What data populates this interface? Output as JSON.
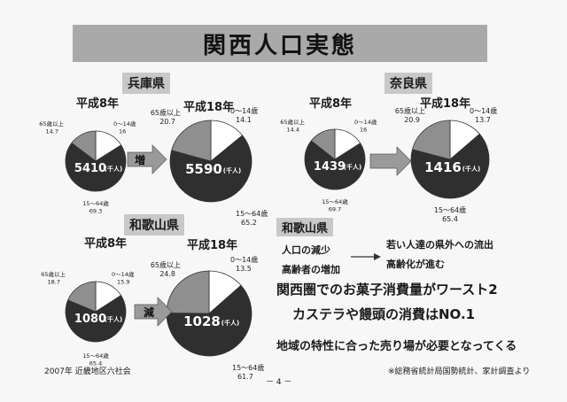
{
  "slide": {
    "title": "関西人口実態",
    "page_number": "－ 4 －",
    "footer_left": "2007年 近畿地区六社会",
    "footer_right": "※総務省統計局国勢統計、家計調査より",
    "colors": {
      "under15": "#ffffff",
      "age15to64": "#2f2f2f",
      "over65": "#8f8f8f",
      "title_bg": "#a9a9a9"
    }
  },
  "labels": {
    "under15": "0～14歳",
    "age15to64": "15～64歳",
    "over65": "65歳以上",
    "unit": "(千人)"
  },
  "regions": {
    "hyogo": {
      "name": "兵庫県",
      "arrow": "増"
    },
    "nara": {
      "name": "奈良県",
      "arrow": ""
    },
    "wakayama": {
      "name": "和歌山県",
      "arrow": "減"
    }
  },
  "chart_data": [
    {
      "type": "pie",
      "title": "平成8年",
      "region": "兵庫県",
      "total": 5410,
      "unit": "(千人)",
      "categories": [
        "0～14歳",
        "15～64歳",
        "65歳以上"
      ],
      "values": [
        16,
        69.3,
        14.7
      ]
    },
    {
      "type": "pie",
      "title": "平成18年",
      "region": "兵庫県",
      "total": 5590,
      "unit": "(千人)",
      "categories": [
        "0～14歳",
        "15～64歳",
        "65歳以上"
      ],
      "values": [
        14.1,
        65.2,
        20.7
      ]
    },
    {
      "type": "pie",
      "title": "平成8年",
      "region": "奈良県",
      "total": 1439,
      "unit": "(千人)",
      "categories": [
        "0～14歳",
        "15～64歳",
        "65歳以上"
      ],
      "values": [
        16,
        69.7,
        14.4
      ]
    },
    {
      "type": "pie",
      "title": "平成18年",
      "region": "奈良県",
      "total": 1416,
      "unit": "(千人)",
      "categories": [
        "0～14歳",
        "15～64歳",
        "65歳以上"
      ],
      "values": [
        13.7,
        65.4,
        20.9
      ]
    },
    {
      "type": "pie",
      "title": "平成8年",
      "region": "和歌山県",
      "total": 1080,
      "unit": "(千人)",
      "categories": [
        "0～14歳",
        "15～64歳",
        "65歳以上"
      ],
      "values": [
        15.9,
        65.4,
        18.7
      ]
    },
    {
      "type": "pie",
      "title": "平成18年",
      "region": "和歌山県",
      "total": 1028,
      "unit": "(千人)",
      "categories": [
        "0～14歳",
        "15～64歳",
        "65歳以上"
      ],
      "values": [
        13.5,
        61.7,
        24.8
      ]
    }
  ],
  "wakayama_panel": {
    "heading": "和歌山県",
    "cause1": "人口の減少",
    "cause2": "高齢者の増加",
    "effect1": "若い人達の県外への流出",
    "effect2": "高齢化が進む"
  },
  "headlines": {
    "line1": "関西圏でのお菓子消費量がワースト2",
    "line2": "カステラや饅頭の消費はNO.1",
    "line3": "地域の特性に合った売り場が必要となってくる"
  }
}
